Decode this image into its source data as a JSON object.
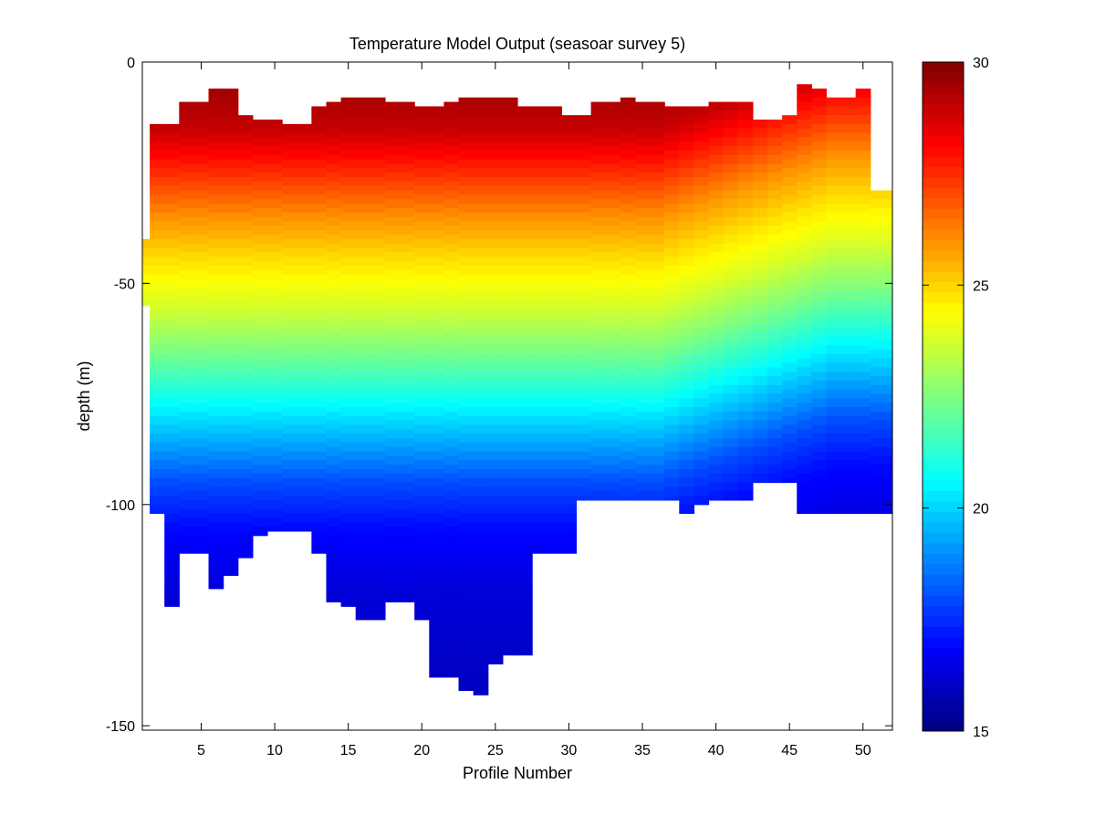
{
  "chart_data": {
    "type": "heatmap",
    "title": "Temperature Model Output  (seasoar survey 5)",
    "xlabel": "Profile Number",
    "ylabel": "depth (m)",
    "xlim": [
      1,
      52
    ],
    "ylim": [
      -151,
      0
    ],
    "xticks": [
      5,
      10,
      15,
      20,
      25,
      30,
      35,
      40,
      45,
      50
    ],
    "yticks": [
      0,
      -50,
      -100,
      -150
    ],
    "grid": false,
    "colormap": "jet",
    "colorbar": {
      "min": 15,
      "max": 30,
      "ticks": [
        15,
        20,
        25,
        30
      ],
      "position": "right"
    },
    "profiles": [
      1,
      2,
      3,
      4,
      5,
      6,
      7,
      8,
      9,
      10,
      11,
      12,
      13,
      14,
      15,
      16,
      17,
      18,
      19,
      20,
      21,
      22,
      23,
      24,
      25,
      26,
      27,
      28,
      29,
      30,
      31,
      32,
      33,
      34,
      35,
      36,
      37,
      38,
      39,
      40,
      41,
      42,
      43,
      44,
      45,
      46,
      47,
      48,
      49,
      50,
      51,
      52
    ],
    "top_depth_m": [
      -40,
      -14,
      -14,
      -9,
      -9,
      -6,
      -6,
      -12,
      -13,
      -13,
      -14,
      -14,
      -10,
      -9,
      -8,
      -8,
      -8,
      -9,
      -9,
      -10,
      -10,
      -9,
      -8,
      -8,
      -8,
      -8,
      -10,
      -10,
      -10,
      -12,
      -12,
      -9,
      -9,
      -8,
      -9,
      -9,
      -10,
      -10,
      -10,
      -9,
      -9,
      -9,
      -13,
      -13,
      -12,
      -5,
      -6,
      -8,
      -8,
      -6,
      -29,
      -29
    ],
    "bottom_depth_m": [
      -55,
      -102,
      -123,
      -111,
      -111,
      -119,
      -116,
      -112,
      -107,
      -106,
      -106,
      -106,
      -111,
      -122,
      -123,
      -126,
      -126,
      -122,
      -122,
      -126,
      -139,
      -139,
      -142,
      -143,
      -136,
      -134,
      -134,
      -111,
      -111,
      -111,
      -99,
      -99,
      -99,
      -99,
      -99,
      -99,
      -99,
      -102,
      -100,
      -99,
      -99,
      -99,
      -95,
      -95,
      -95,
      -102,
      -102,
      -102,
      -102,
      -102,
      -102,
      -102
    ],
    "temperature_profile_reference": {
      "depth_m": [
        -5,
        -15,
        -25,
        -35,
        -45,
        -55,
        -65,
        -75,
        -85,
        -95,
        -105,
        -120,
        -140
      ],
      "temperature_c": [
        29.5,
        29.0,
        27.5,
        26.0,
        24.8,
        23.8,
        22.5,
        21.0,
        19.5,
        18.0,
        17.0,
        16.3,
        16.0
      ]
    }
  }
}
